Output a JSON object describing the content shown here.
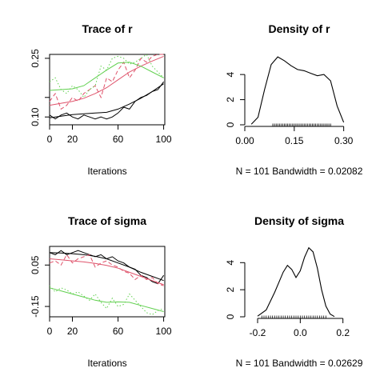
{
  "colors": {
    "chain1": "#000000",
    "chain2": "#DF536B",
    "chain3": "#61D04F",
    "axis": "#000000"
  },
  "chart_data": [
    {
      "type": "line",
      "title": "Trace of r",
      "xlabel": "Iterations",
      "ylabel": "",
      "xlim": [
        0,
        101
      ],
      "ylim": [
        0.08,
        0.26
      ],
      "xticks": [
        0,
        20,
        60,
        100
      ],
      "yticks": [
        0.1,
        0.15,
        0.25
      ],
      "ytick_labels": [
        "0.10",
        "",
        "0.25"
      ],
      "series": [
        {
          "color": "#000000",
          "style": "solid",
          "kind": "trace",
          "x": [
            0,
            5,
            10,
            15,
            20,
            25,
            30,
            35,
            40,
            45,
            50,
            55,
            60,
            65,
            70,
            75,
            80,
            85,
            90,
            95,
            100
          ],
          "y": [
            0.105,
            0.095,
            0.105,
            0.11,
            0.1,
            0.095,
            0.105,
            0.1,
            0.095,
            0.1,
            0.095,
            0.1,
            0.11,
            0.125,
            0.12,
            0.14,
            0.15,
            0.155,
            0.165,
            0.17,
            0.19
          ]
        },
        {
          "color": "#000000",
          "style": "solid",
          "kind": "smooth",
          "x": [
            0,
            10,
            20,
            30,
            40,
            50,
            60,
            70,
            80,
            90,
            100
          ],
          "y": [
            0.098,
            0.102,
            0.106,
            0.108,
            0.11,
            0.112,
            0.12,
            0.133,
            0.148,
            0.165,
            0.185
          ]
        },
        {
          "color": "#DF536B",
          "style": "dashed",
          "kind": "trace",
          "x": [
            0,
            5,
            10,
            15,
            20,
            25,
            30,
            35,
            40,
            45,
            50,
            55,
            60,
            65,
            70,
            75,
            80,
            85,
            90,
            95,
            100
          ],
          "y": [
            0.14,
            0.16,
            0.12,
            0.13,
            0.15,
            0.14,
            0.16,
            0.17,
            0.18,
            0.15,
            0.2,
            0.19,
            0.22,
            0.24,
            0.2,
            0.22,
            0.25,
            0.24,
            0.255,
            0.26,
            0.26
          ]
        },
        {
          "color": "#DF536B",
          "style": "solid",
          "kind": "smooth",
          "x": [
            0,
            10,
            20,
            30,
            40,
            50,
            60,
            70,
            80,
            90,
            100
          ],
          "y": [
            0.13,
            0.135,
            0.14,
            0.148,
            0.16,
            0.175,
            0.195,
            0.215,
            0.23,
            0.243,
            0.255
          ]
        },
        {
          "color": "#61D04F",
          "style": "dotted",
          "kind": "trace",
          "x": [
            0,
            5,
            10,
            15,
            20,
            25,
            30,
            35,
            40,
            45,
            50,
            55,
            60,
            65,
            70,
            75,
            80,
            85,
            90,
            95,
            100
          ],
          "y": [
            0.19,
            0.2,
            0.17,
            0.16,
            0.18,
            0.17,
            0.15,
            0.17,
            0.18,
            0.23,
            0.22,
            0.25,
            0.255,
            0.25,
            0.235,
            0.24,
            0.25,
            0.26,
            0.23,
            0.215,
            0.2
          ]
        },
        {
          "color": "#61D04F",
          "style": "solid",
          "kind": "smooth",
          "x": [
            0,
            10,
            20,
            30,
            40,
            50,
            60,
            70,
            80,
            90,
            100
          ],
          "y": [
            0.168,
            0.17,
            0.172,
            0.18,
            0.2,
            0.22,
            0.238,
            0.24,
            0.23,
            0.215,
            0.2
          ]
        }
      ]
    },
    {
      "type": "line",
      "title": "Density of r",
      "xlabel": "N = 101   Bandwidth = 0.02082",
      "ylabel": "",
      "xlim": [
        0.0,
        0.33
      ],
      "ylim": [
        0,
        5.6
      ],
      "xticks": [
        0.0,
        0.15,
        0.3
      ],
      "xtick_labels": [
        "0.00",
        "0.15",
        "0.30"
      ],
      "yticks": [
        0,
        2,
        4
      ],
      "series": [
        {
          "color": "#000000",
          "style": "solid",
          "kind": "density",
          "x": [
            0.02,
            0.04,
            0.06,
            0.08,
            0.1,
            0.12,
            0.14,
            0.16,
            0.18,
            0.2,
            0.22,
            0.24,
            0.26,
            0.28,
            0.3
          ],
          "y": [
            0.05,
            0.6,
            2.8,
            4.8,
            5.4,
            5.1,
            4.7,
            4.4,
            4.3,
            4.1,
            3.9,
            4.0,
            3.5,
            1.5,
            0.2
          ]
        }
      ],
      "rug": [
        0.085,
        0.09,
        0.095,
        0.1,
        0.105,
        0.11,
        0.115,
        0.12,
        0.125,
        0.13,
        0.135,
        0.14,
        0.145,
        0.15,
        0.155,
        0.16,
        0.165,
        0.17,
        0.175,
        0.18,
        0.185,
        0.19,
        0.195,
        0.2,
        0.205,
        0.21,
        0.215,
        0.22,
        0.225,
        0.23,
        0.235,
        0.24,
        0.245,
        0.25,
        0.255,
        0.26
      ]
    },
    {
      "type": "line",
      "title": "Trace of sigma",
      "xlabel": "Iterations",
      "ylabel": "",
      "xlim": [
        0,
        101
      ],
      "ylim": [
        -0.2,
        0.14
      ],
      "xticks": [
        0,
        20,
        60,
        100
      ],
      "yticks": [
        -0.15,
        0.05
      ],
      "ytick_labels": [
        "-0.15",
        "0.05"
      ],
      "series": [
        {
          "color": "#000000",
          "style": "solid",
          "kind": "trace",
          "x": [
            0,
            5,
            10,
            15,
            20,
            25,
            30,
            35,
            40,
            45,
            50,
            55,
            60,
            65,
            70,
            75,
            80,
            85,
            90,
            95,
            100
          ],
          "y": [
            0.11,
            0.1,
            0.12,
            0.1,
            0.11,
            0.12,
            0.11,
            0.1,
            0.09,
            0.1,
            0.08,
            0.09,
            0.07,
            0.06,
            0.04,
            0.03,
            0.0,
            -0.01,
            -0.03,
            -0.04,
            0.0
          ]
        },
        {
          "color": "#000000",
          "style": "solid",
          "kind": "smooth",
          "x": [
            0,
            10,
            20,
            30,
            40,
            50,
            60,
            70,
            80,
            90,
            100
          ],
          "y": [
            0.11,
            0.108,
            0.105,
            0.1,
            0.092,
            0.08,
            0.06,
            0.04,
            0.015,
            -0.005,
            -0.025
          ]
        },
        {
          "color": "#DF536B",
          "style": "dashed",
          "kind": "trace",
          "x": [
            0,
            5,
            10,
            15,
            20,
            25,
            30,
            35,
            40,
            45,
            50,
            55,
            60,
            65,
            70,
            75,
            80,
            85,
            90,
            95,
            100
          ],
          "y": [
            0.06,
            0.07,
            0.05,
            0.1,
            0.06,
            0.08,
            0.09,
            0.1,
            0.04,
            0.06,
            0.07,
            0.05,
            0.04,
            0.02,
            0.01,
            -0.02,
            0.0,
            -0.02,
            -0.01,
            -0.04,
            -0.05
          ]
        },
        {
          "color": "#DF536B",
          "style": "solid",
          "kind": "smooth",
          "x": [
            0,
            10,
            20,
            30,
            40,
            50,
            60,
            70,
            80,
            90,
            100
          ],
          "y": [
            0.08,
            0.075,
            0.07,
            0.065,
            0.058,
            0.048,
            0.035,
            0.015,
            -0.005,
            -0.025,
            -0.045
          ]
        },
        {
          "color": "#61D04F",
          "style": "dotted",
          "kind": "trace",
          "x": [
            0,
            5,
            10,
            15,
            20,
            25,
            30,
            35,
            40,
            45,
            50,
            55,
            60,
            65,
            70,
            75,
            80,
            85,
            90,
            95,
            100
          ],
          "y": [
            -0.05,
            -0.08,
            -0.06,
            -0.07,
            -0.09,
            -0.08,
            -0.1,
            -0.12,
            -0.09,
            -0.13,
            -0.16,
            -0.11,
            -0.15,
            -0.14,
            -0.09,
            -0.12,
            -0.15,
            -0.18,
            -0.19,
            -0.17,
            -0.16
          ]
        },
        {
          "color": "#61D04F",
          "style": "solid",
          "kind": "smooth",
          "x": [
            0,
            10,
            20,
            30,
            40,
            50,
            60,
            70,
            80,
            90,
            100
          ],
          "y": [
            -0.06,
            -0.075,
            -0.09,
            -0.105,
            -0.12,
            -0.13,
            -0.128,
            -0.13,
            -0.145,
            -0.16,
            -0.175
          ]
        }
      ]
    },
    {
      "type": "line",
      "title": "Density of sigma",
      "xlabel": "N = 101   Bandwidth = 0.02629",
      "ylabel": "",
      "xlim": [
        -0.26,
        0.25
      ],
      "ylim": [
        0,
        5.2
      ],
      "xticks": [
        -0.2,
        0.0,
        0.2
      ],
      "xtick_labels": [
        "-0.2",
        "0.0",
        "0.2"
      ],
      "yticks": [
        0,
        2,
        4
      ],
      "series": [
        {
          "color": "#000000",
          "style": "solid",
          "kind": "density",
          "x": [
            -0.2,
            -0.16,
            -0.12,
            -0.08,
            -0.06,
            -0.04,
            -0.02,
            0.0,
            0.02,
            0.04,
            0.06,
            0.08,
            0.1,
            0.12,
            0.14,
            0.16
          ],
          "y": [
            0.05,
            0.5,
            1.8,
            3.3,
            3.8,
            3.5,
            2.9,
            3.4,
            4.4,
            5.1,
            4.8,
            3.6,
            2.0,
            0.8,
            0.2,
            0.02
          ]
        }
      ],
      "rug": [
        -0.18,
        -0.17,
        -0.16,
        -0.15,
        -0.14,
        -0.13,
        -0.12,
        -0.11,
        -0.1,
        -0.09,
        -0.08,
        -0.07,
        -0.06,
        -0.05,
        -0.04,
        -0.03,
        -0.02,
        -0.01,
        0.0,
        0.01,
        0.02,
        0.03,
        0.04,
        0.05,
        0.06,
        0.07,
        0.08,
        0.09,
        0.1,
        0.11,
        0.12
      ]
    }
  ]
}
